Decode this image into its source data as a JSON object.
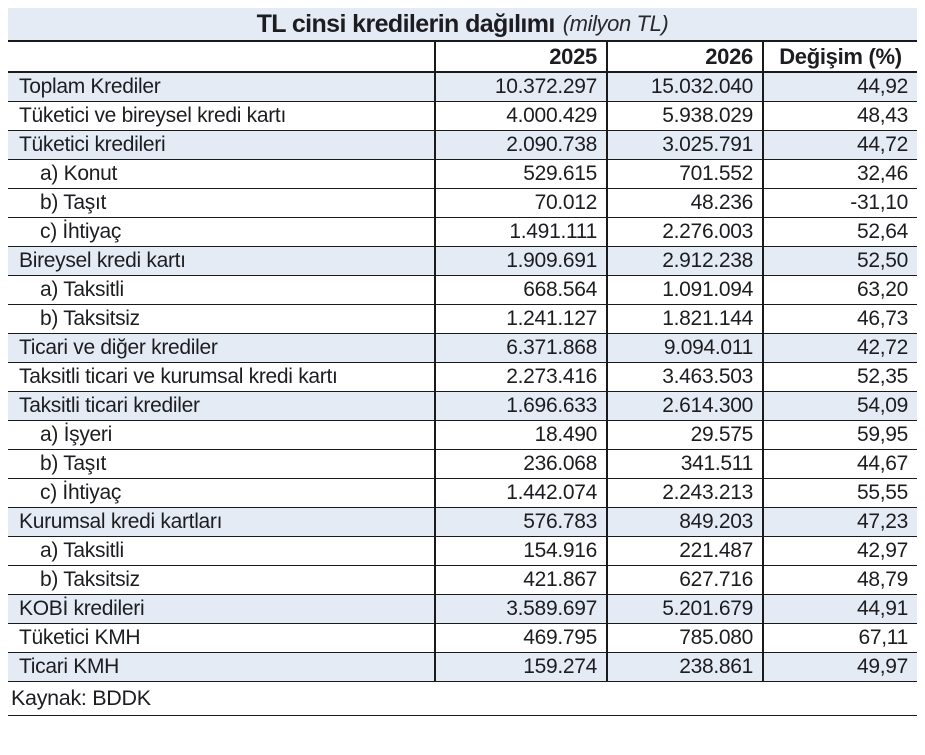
{
  "title": {
    "main": "TL cinsi kredilerin dağılımı",
    "unit": "(milyon TL)"
  },
  "header": {
    "label": "",
    "year1": "2025",
    "year2": "2026",
    "change": "Değişim (%)"
  },
  "rows": [
    {
      "label": "Toplam Krediler",
      "v2025": "10.372.297",
      "v2026": "15.032.040",
      "change": "44,92",
      "shaded": true,
      "indent": false
    },
    {
      "label": "Tüketici ve bireysel kredi kartı",
      "v2025": "4.000.429",
      "v2026": "5.938.029",
      "change": "48,43",
      "shaded": false,
      "indent": false
    },
    {
      "label": "Tüketici kredileri",
      "v2025": "2.090.738",
      "v2026": "3.025.791",
      "change": "44,72",
      "shaded": true,
      "indent": false
    },
    {
      "label": "a) Konut",
      "v2025": "529.615",
      "v2026": "701.552",
      "change": "32,46",
      "shaded": false,
      "indent": true
    },
    {
      "label": "b) Taşıt",
      "v2025": "70.012",
      "v2026": "48.236",
      "change": "-31,10",
      "shaded": false,
      "indent": true
    },
    {
      "label": "c) İhtiyaç",
      "v2025": "1.491.111",
      "v2026": "2.276.003",
      "change": "52,64",
      "shaded": false,
      "indent": true
    },
    {
      "label": "Bireysel kredi kartı",
      "v2025": "1.909.691",
      "v2026": "2.912.238",
      "change": "52,50",
      "shaded": true,
      "indent": false
    },
    {
      "label": "a) Taksitli",
      "v2025": "668.564",
      "v2026": "1.091.094",
      "change": "63,20",
      "shaded": false,
      "indent": true
    },
    {
      "label": "b) Taksitsiz",
      "v2025": "1.241.127",
      "v2026": "1.821.144",
      "change": "46,73",
      "shaded": false,
      "indent": true
    },
    {
      "label": "Ticari ve diğer krediler",
      "v2025": "6.371.868",
      "v2026": "9.094.011",
      "change": "42,72",
      "shaded": true,
      "indent": false
    },
    {
      "label": "Taksitli ticari ve kurumsal kredi kartı",
      "v2025": "2.273.416",
      "v2026": "3.463.503",
      "change": "52,35",
      "shaded": false,
      "indent": false
    },
    {
      "label": "Taksitli ticari krediler",
      "v2025": "1.696.633",
      "v2026": "2.614.300",
      "change": "54,09",
      "shaded": true,
      "indent": false
    },
    {
      "label": "a) İşyeri",
      "v2025": "18.490",
      "v2026": "29.575",
      "change": "59,95",
      "shaded": false,
      "indent": true
    },
    {
      "label": "b) Taşıt",
      "v2025": "236.068",
      "v2026": "341.511",
      "change": "44,67",
      "shaded": false,
      "indent": true
    },
    {
      "label": "c) İhtiyaç",
      "v2025": "1.442.074",
      "v2026": "2.243.213",
      "change": "55,55",
      "shaded": false,
      "indent": true
    },
    {
      "label": "Kurumsal kredi kartları",
      "v2025": "576.783",
      "v2026": "849.203",
      "change": "47,23",
      "shaded": true,
      "indent": false
    },
    {
      "label": "a) Taksitli",
      "v2025": "154.916",
      "v2026": "221.487",
      "change": "42,97",
      "shaded": false,
      "indent": true
    },
    {
      "label": "b) Taksitsiz",
      "v2025": "421.867",
      "v2026": "627.716",
      "change": "48,79",
      "shaded": false,
      "indent": true
    },
    {
      "label": "KOBİ kredileri",
      "v2025": "3.589.697",
      "v2026": "5.201.679",
      "change": "44,91",
      "shaded": true,
      "indent": false
    },
    {
      "label": "Tüketici KMH",
      "v2025": "469.795",
      "v2026": "785.080",
      "change": "67,11",
      "shaded": false,
      "indent": false
    },
    {
      "label": "Ticari KMH",
      "v2025": "159.274",
      "v2026": "238.861",
      "change": "49,97",
      "shaded": true,
      "indent": false
    }
  ],
  "footer": {
    "source": "Kaynak: BDDK"
  },
  "colors": {
    "shade": "#e4ebf4",
    "border": "#1a1a1c",
    "text": "#1d1d21"
  },
  "chart_data": {
    "type": "table",
    "title": "TL cinsi kredilerin dağılımı",
    "unit": "milyon TL",
    "columns": [
      "",
      "2025",
      "2026",
      "Değişim (%)"
    ],
    "rows": [
      [
        "Toplam Krediler",
        10372297,
        15032040,
        44.92
      ],
      [
        "Tüketici ve bireysel kredi kartı",
        4000429,
        5938029,
        48.43
      ],
      [
        "Tüketici kredileri",
        2090738,
        3025791,
        44.72
      ],
      [
        "a) Konut",
        529615,
        701552,
        32.46
      ],
      [
        "b) Taşıt",
        70012,
        48236,
        -31.1
      ],
      [
        "c) İhtiyaç",
        1491111,
        2276003,
        52.64
      ],
      [
        "Bireysel kredi kartı",
        1909691,
        2912238,
        52.5
      ],
      [
        "a) Taksitli",
        668564,
        1091094,
        63.2
      ],
      [
        "b) Taksitsiz",
        1241127,
        1821144,
        46.73
      ],
      [
        "Ticari ve diğer krediler",
        6371868,
        9094011,
        42.72
      ],
      [
        "Taksitli ticari ve kurumsal kredi kartı",
        2273416,
        3463503,
        52.35
      ],
      [
        "Taksitli ticari krediler",
        1696633,
        2614300,
        54.09
      ],
      [
        "a) İşyeri",
        18490,
        29575,
        59.95
      ],
      [
        "b) Taşıt",
        236068,
        341511,
        44.67
      ],
      [
        "c) İhtiyaç",
        1442074,
        2243213,
        55.55
      ],
      [
        "Kurumsal kredi kartları",
        576783,
        849203,
        47.23
      ],
      [
        "a) Taksitli",
        154916,
        221487,
        42.97
      ],
      [
        "b) Taksitsiz",
        421867,
        627716,
        48.79
      ],
      [
        "KOBİ kredileri",
        3589697,
        5201679,
        44.91
      ],
      [
        "Tüketici KMH",
        469795,
        785080,
        67.11
      ],
      [
        "Ticari KMH",
        159274,
        238861,
        49.97
      ]
    ],
    "source": "BDDK"
  }
}
